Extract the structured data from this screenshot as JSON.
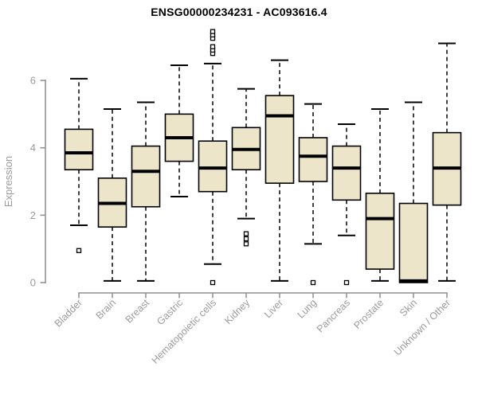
{
  "title": "ENSG00000234231 - AC093616.4",
  "colors": {
    "box_fill": "#ece5c9",
    "box_stroke": "#000000",
    "median": "#000000",
    "whisker": "#000000",
    "axis": "#8e8e8e",
    "tick_label": "#9b9b9b",
    "title": "#000000",
    "background": "#ffffff"
  },
  "chart_data": {
    "type": "boxplot",
    "title": "ENSG00000234231 - AC093616.4",
    "xlabel": "",
    "ylabel": "Expression",
    "yticks": [
      0,
      2,
      4,
      6
    ],
    "ylim": [
      0,
      7.5
    ],
    "grid": false,
    "legend": "none",
    "categories": [
      "Bladder",
      "Brain",
      "Breast",
      "Gastric",
      "Hematopoietic cells",
      "Kidney",
      "Liver",
      "Lung",
      "Pancreas",
      "Prostate",
      "Skin",
      "Unknown / Other"
    ],
    "series": [
      {
        "name": "Bladder",
        "whisker_low": 1.7,
        "q1": 3.35,
        "median": 3.85,
        "q3": 4.55,
        "whisker_high": 6.05,
        "outliers": [
          0.95
        ]
      },
      {
        "name": "Brain",
        "whisker_low": 0.05,
        "q1": 1.65,
        "median": 2.35,
        "q3": 3.1,
        "whisker_high": 5.15,
        "outliers": []
      },
      {
        "name": "Breast",
        "whisker_low": 0.05,
        "q1": 2.25,
        "median": 3.3,
        "q3": 4.05,
        "whisker_high": 5.35,
        "outliers": []
      },
      {
        "name": "Gastric",
        "whisker_low": 2.55,
        "q1": 3.6,
        "median": 4.3,
        "q3": 5.0,
        "whisker_high": 6.45,
        "outliers": []
      },
      {
        "name": "Hematopoietic cells",
        "whisker_low": 0.55,
        "q1": 2.7,
        "median": 3.4,
        "q3": 4.2,
        "whisker_high": 6.5,
        "outliers": [
          0.0,
          6.8,
          6.9,
          7.0,
          7.25,
          7.35,
          7.45
        ]
      },
      {
        "name": "Kidney",
        "whisker_low": 1.9,
        "q1": 3.35,
        "median": 3.95,
        "q3": 4.6,
        "whisker_high": 5.75,
        "outliers": [
          1.15,
          1.3,
          1.45
        ]
      },
      {
        "name": "Liver",
        "whisker_low": 0.05,
        "q1": 2.95,
        "median": 4.95,
        "q3": 5.55,
        "whisker_high": 6.6,
        "outliers": []
      },
      {
        "name": "Lung",
        "whisker_low": 1.15,
        "q1": 3.0,
        "median": 3.75,
        "q3": 4.3,
        "whisker_high": 5.3,
        "outliers": [
          0.0
        ]
      },
      {
        "name": "Pancreas",
        "whisker_low": 1.4,
        "q1": 2.45,
        "median": 3.4,
        "q3": 4.05,
        "whisker_high": 4.7,
        "outliers": [
          0.0
        ]
      },
      {
        "name": "Prostate",
        "whisker_low": 0.05,
        "q1": 0.4,
        "median": 1.9,
        "q3": 2.65,
        "whisker_high": 5.15,
        "outliers": []
      },
      {
        "name": "Skin",
        "whisker_low": 0.0,
        "q1": 0.0,
        "median": 0.05,
        "q3": 2.35,
        "whisker_high": 5.35,
        "outliers": []
      },
      {
        "name": "Unknown / Other",
        "whisker_low": 0.05,
        "q1": 2.3,
        "median": 3.4,
        "q3": 4.45,
        "whisker_high": 7.1,
        "outliers": []
      }
    ]
  }
}
